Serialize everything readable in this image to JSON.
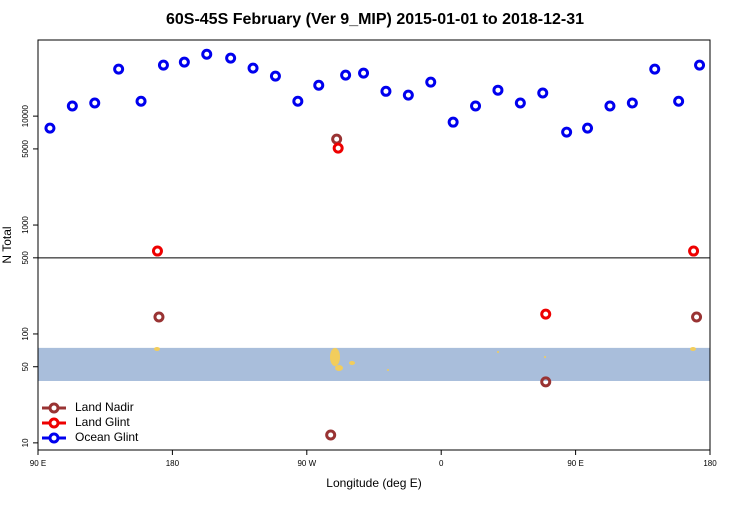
{
  "chart_data": {
    "type": "scatter",
    "title": "60S-45S February (Ver 9_MIP)   2015-01-01 to 2018-12-31",
    "x_label": "Longitude (deg E)",
    "y_label": "N Total",
    "xlim": [
      90,
      540
    ],
    "xticks": [
      {
        "value": 90,
        "label": "90 E"
      },
      180,
      {
        "value": 270,
        "label": "90 W"
      },
      {
        "value": 360,
        "label": "0"
      },
      {
        "value": 450,
        "label": "90 E"
      },
      {
        "value": 540,
        "label": "180"
      }
    ],
    "ylim": [
      8.6,
      50000
    ],
    "y_scale": "log",
    "yticks": [
      10,
      50,
      100,
      500,
      1000,
      5000,
      10000
    ],
    "hline": 500,
    "band": [
      37,
      74.5
    ],
    "band_color": "#a9bedb",
    "legend": "bottom-left",
    "series": [
      {
        "name": "Land Nadir",
        "color": "#993333",
        "x": [
          171,
          290,
          430,
          286,
          531
        ],
        "values": [
          143,
          6150,
          36.3,
          11.8,
          143
        ]
      },
      {
        "name": "Land Glint",
        "color": "#ee0000",
        "x": [
          170,
          291,
          430,
          529
        ],
        "values": [
          577,
          5080,
          152,
          577
        ]
      },
      {
        "name": "Ocean Glint",
        "color": "#0000ee",
        "x": [
          98,
          113,
          128,
          144,
          159,
          174,
          188,
          203,
          219,
          234,
          249,
          264,
          278,
          296,
          308,
          323,
          338,
          353,
          368,
          383,
          398,
          413,
          428,
          444,
          458,
          473,
          488,
          503,
          519,
          533
        ],
        "values": [
          7760,
          12400,
          13200,
          27000,
          13700,
          29400,
          31300,
          37000,
          34100,
          27600,
          23300,
          13700,
          19200,
          23800,
          24800,
          16900,
          15600,
          20500,
          8800,
          12400,
          17300,
          13200,
          16300,
          7130,
          7760,
          12400,
          13200,
          27000,
          13700,
          29400
        ]
      }
    ]
  }
}
